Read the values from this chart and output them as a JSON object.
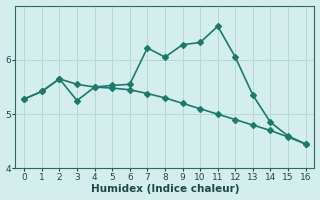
{
  "xlabel": "Humidex (Indice chaleur)",
  "bg_color": "#d4eeed",
  "line_color": "#1a7a6e",
  "grid_color": "#b8d8d4",
  "series1_x": [
    0,
    1,
    2,
    3,
    4,
    5,
    6,
    7,
    8,
    9,
    10,
    11,
    12,
    13,
    14,
    15,
    16
  ],
  "series1_y": [
    5.28,
    5.42,
    5.65,
    5.25,
    5.5,
    5.53,
    5.55,
    6.22,
    6.05,
    6.28,
    6.32,
    6.62,
    6.05,
    5.35,
    4.85,
    4.6,
    4.45
  ],
  "series2_x": [
    0,
    1,
    2,
    3,
    4,
    5,
    6,
    7,
    8,
    9,
    10,
    11,
    12,
    13,
    14,
    15,
    16
  ],
  "series2_y": [
    5.28,
    5.42,
    5.65,
    5.55,
    5.5,
    5.48,
    5.45,
    5.38,
    5.3,
    5.2,
    5.1,
    5.0,
    4.9,
    4.8,
    4.7,
    4.58,
    4.45
  ],
  "xlim": [
    -0.5,
    16.5
  ],
  "ylim": [
    4.0,
    7.0
  ],
  "xticks": [
    0,
    1,
    2,
    3,
    4,
    5,
    6,
    7,
    8,
    9,
    10,
    11,
    12,
    13,
    14,
    15,
    16
  ],
  "yticks": [
    4,
    5,
    6
  ],
  "markersize": 3,
  "linewidth": 1.2
}
